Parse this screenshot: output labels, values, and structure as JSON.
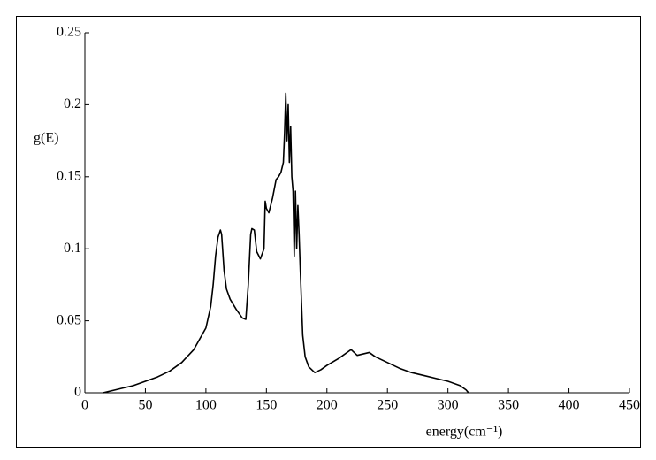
{
  "chart_data": {
    "type": "line",
    "xlabel": "energy(cm⁻¹)",
    "ylabel": "g(E)",
    "x": [
      15,
      20,
      30,
      40,
      50,
      60,
      70,
      80,
      90,
      100,
      104,
      106,
      108,
      110,
      112,
      113,
      115,
      117,
      120,
      125,
      130,
      133,
      135,
      137,
      138,
      140,
      142,
      145,
      148,
      149,
      150,
      152,
      155,
      158,
      160,
      162,
      164,
      165,
      166,
      167,
      168,
      169,
      170,
      171,
      172,
      173,
      174,
      175,
      176,
      177,
      178,
      180,
      182,
      185,
      190,
      195,
      200,
      210,
      220,
      225,
      230,
      235,
      240,
      250,
      260,
      270,
      280,
      290,
      300,
      310,
      315,
      317
    ],
    "values": [
      0,
      0.001,
      0.003,
      0.005,
      0.008,
      0.011,
      0.015,
      0.021,
      0.03,
      0.045,
      0.06,
      0.075,
      0.095,
      0.108,
      0.113,
      0.11,
      0.085,
      0.072,
      0.065,
      0.058,
      0.052,
      0.051,
      0.075,
      0.11,
      0.114,
      0.113,
      0.098,
      0.093,
      0.1,
      0.133,
      0.128,
      0.125,
      0.135,
      0.148,
      0.15,
      0.153,
      0.16,
      0.18,
      0.208,
      0.175,
      0.2,
      0.16,
      0.185,
      0.15,
      0.14,
      0.095,
      0.14,
      0.1,
      0.13,
      0.11,
      0.085,
      0.04,
      0.025,
      0.018,
      0.014,
      0.016,
      0.019,
      0.024,
      0.03,
      0.026,
      0.027,
      0.028,
      0.025,
      0.021,
      0.017,
      0.014,
      0.012,
      0.01,
      0.008,
      0.005,
      0.002,
      0
    ],
    "color": "#000000",
    "xlim": [
      0,
      450
    ],
    "xticks": [
      0,
      50,
      100,
      150,
      200,
      250,
      300,
      350,
      400,
      450
    ],
    "ylim": [
      0,
      0.25
    ],
    "yticks": [
      0,
      0.05,
      0.1,
      0.15,
      0.2,
      0.25
    ]
  }
}
